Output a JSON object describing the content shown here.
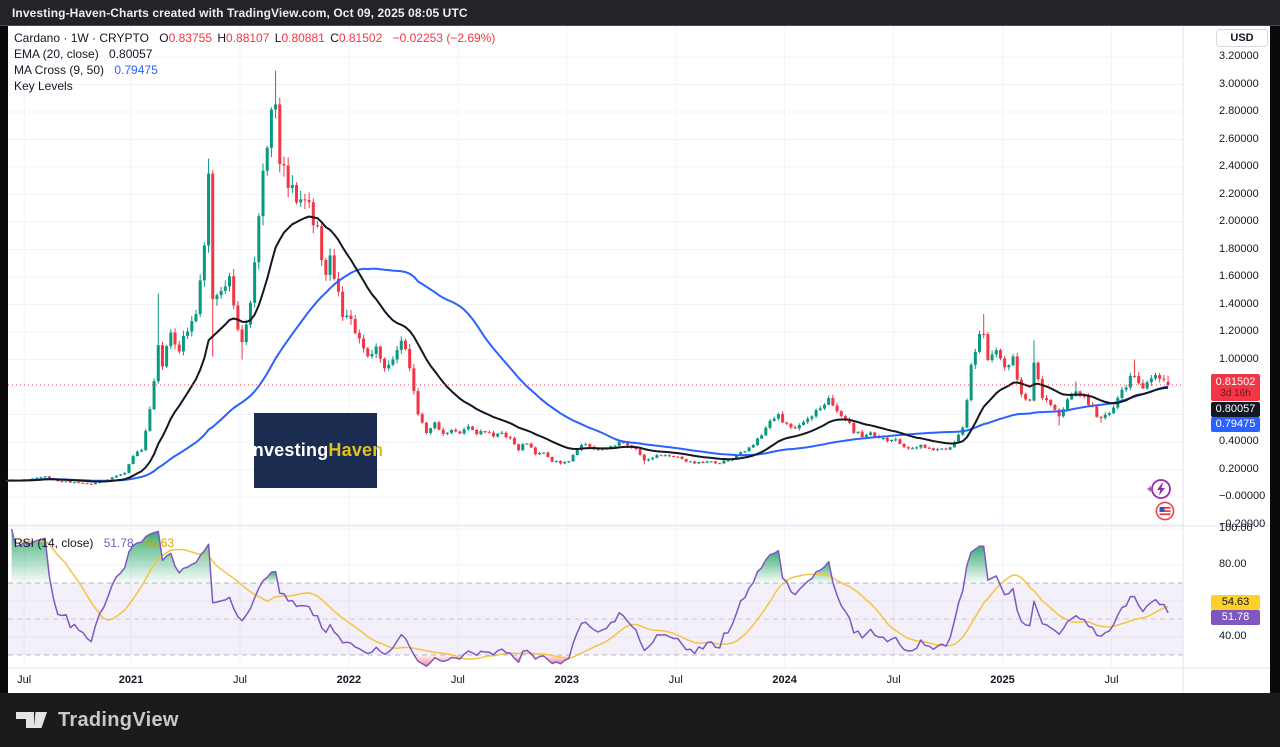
{
  "topbar": {
    "title": "Investing-Haven-Charts created with TradingView.com, Oct 09, 2025 08:05 UTC"
  },
  "legend": {
    "row1": {
      "title": "Cardano · 1W · CRYPTO",
      "o_label": "O",
      "o": "0.83755",
      "h_label": "H",
      "h": "0.88107",
      "l_label": "L",
      "l": "0.80881",
      "c_label": "C",
      "c": "0.81502",
      "change": "−0.02253 (−2.69%)"
    },
    "row2": {
      "label": "EMA (20, close)",
      "value": "0.80057"
    },
    "row3": {
      "label": "MA Cross (9, 50)",
      "value": "0.79475"
    },
    "row4": {
      "label": "Key Levels"
    }
  },
  "rsi_legend": {
    "label": "RSI (14, close)",
    "rsi_value": "51.78",
    "ma_value": "54.63"
  },
  "axis": {
    "currency": "USD",
    "price_ticks": [
      {
        "label": "3.20000",
        "value": 3.2
      },
      {
        "label": "3.00000",
        "value": 3.0
      },
      {
        "label": "2.80000",
        "value": 2.8
      },
      {
        "label": "2.60000",
        "value": 2.6
      },
      {
        "label": "2.40000",
        "value": 2.4
      },
      {
        "label": "2.20000",
        "value": 2.2
      },
      {
        "label": "2.00000",
        "value": 2.0
      },
      {
        "label": "1.80000",
        "value": 1.8
      },
      {
        "label": "1.60000",
        "value": 1.6
      },
      {
        "label": "1.40000",
        "value": 1.4
      },
      {
        "label": "1.20000",
        "value": 1.2
      },
      {
        "label": "1.00000",
        "value": 1.0
      },
      {
        "label": "0.40000",
        "value": 0.4
      },
      {
        "label": "0.20000",
        "value": 0.2
      },
      {
        "label": "−0.00000",
        "value": 0.0
      },
      {
        "label": "−0.20000",
        "value": -0.2
      }
    ],
    "rsi_ticks": [
      {
        "label": "100.00",
        "value": 100
      },
      {
        "label": "80.00",
        "value": 80
      },
      {
        "label": "40.00",
        "value": 40
      }
    ],
    "time_ticks": [
      {
        "label": "Jul",
        "week": 1,
        "bold": false
      },
      {
        "label": "2021",
        "week": 26.5,
        "bold": true
      },
      {
        "label": "Jul",
        "week": 52.5,
        "bold": false
      },
      {
        "label": "2022",
        "week": 78.5,
        "bold": true
      },
      {
        "label": "Jul",
        "week": 104.5,
        "bold": false
      },
      {
        "label": "2023",
        "week": 130.5,
        "bold": true
      },
      {
        "label": "Jul",
        "week": 156.5,
        "bold": false
      },
      {
        "label": "2024",
        "week": 182.5,
        "bold": true
      },
      {
        "label": "Jul",
        "week": 208.5,
        "bold": false
      },
      {
        "label": "2025",
        "week": 234.5,
        "bold": true
      },
      {
        "label": "Jul",
        "week": 260.5,
        "bold": false
      }
    ]
  },
  "price_labels": {
    "current": {
      "value": "0.81502",
      "countdown": "3d 16h",
      "color": "#f23645"
    },
    "ema": {
      "value": "0.80057",
      "color": "#131722"
    },
    "ma": {
      "value": "0.79475",
      "color": "#2962ff"
    }
  },
  "rsi_labels": {
    "ma": {
      "value": "54.63",
      "color": "#fdd02c"
    },
    "rsi": {
      "value": "51.78",
      "color": "#7e57c2"
    }
  },
  "watermark": {
    "part1": "Investing",
    "part2": "Haven"
  },
  "footer": {
    "brand": "TradingView"
  },
  "icons": {
    "lightning": "lightning-event-icon",
    "flag": "us-flag-event-icon"
  },
  "chart_data": {
    "type": "candlestick",
    "title": "Cardano 1W CRYPTO with EMA(20), MA Cross(9,50), Key Levels and RSI(14)",
    "timeframe": "1W",
    "x_range": [
      "Jul 2020",
      "Oct 2025"
    ],
    "price_axis": {
      "ticks_step": 0.2,
      "visible_range": [
        -0.29,
        3.42
      ],
      "grid": true
    },
    "rsi_axis": {
      "band": [
        30,
        70
      ],
      "mid": 50,
      "visible_range": [
        23,
        101
      ]
    },
    "current_bar": {
      "open": 0.83755,
      "high": 0.88107,
      "low": 0.80881,
      "close": 0.81502,
      "change": -0.02253,
      "change_pct": -2.69
    },
    "current_price_line": 0.81502,
    "indicators": [
      {
        "name": "EMA",
        "params": "20, close",
        "value": 0.80057,
        "color": "#131722"
      },
      {
        "name": "MA Cross",
        "params": "9, 50",
        "value": 0.79475,
        "color": "#2962ff"
      },
      {
        "name": "Key Levels"
      },
      {
        "name": "RSI",
        "params": "14, close",
        "value": 51.78,
        "ma_value": 54.63,
        "color": "#7e57c2",
        "ma_color": "#f5c342"
      }
    ],
    "weeks_total": 275,
    "price_path_weekly_anchors": [
      [
        -3,
        0.12
      ],
      [
        0,
        0.12
      ],
      [
        3,
        0.132
      ],
      [
        6,
        0.148
      ],
      [
        9,
        0.118
      ],
      [
        13,
        0.105
      ],
      [
        17,
        0.092
      ],
      [
        20,
        0.118
      ],
      [
        23,
        0.155
      ],
      [
        25,
        0.175
      ],
      [
        27,
        0.3
      ],
      [
        29,
        0.34
      ],
      [
        31,
        0.62
      ],
      [
        33,
        1.12
      ],
      [
        34,
        0.98
      ],
      [
        36,
        1.18
      ],
      [
        38,
        1.08
      ],
      [
        40,
        1.22
      ],
      [
        42,
        1.32
      ],
      [
        44,
        1.8
      ],
      [
        45,
        2.28
      ],
      [
        46,
        1.45
      ],
      [
        48,
        1.52
      ],
      [
        50,
        1.56
      ],
      [
        51,
        1.38
      ],
      [
        53,
        1.12
      ],
      [
        55,
        1.45
      ],
      [
        57,
        2.05
      ],
      [
        59,
        2.6
      ],
      [
        61,
        2.88
      ],
      [
        62,
        2.48
      ],
      [
        63,
        2.38
      ],
      [
        65,
        2.25
      ],
      [
        67,
        2.15
      ],
      [
        69,
        2.1
      ],
      [
        71,
        1.95
      ],
      [
        72,
        1.68
      ],
      [
        73,
        1.58
      ],
      [
        74,
        1.72
      ],
      [
        75,
        1.55
      ],
      [
        77,
        1.35
      ],
      [
        79,
        1.3
      ],
      [
        81,
        1.13
      ],
      [
        83,
        1.04
      ],
      [
        85,
        1.09
      ],
      [
        87,
        0.92
      ],
      [
        89,
        1.0
      ],
      [
        91,
        1.17
      ],
      [
        93,
        0.95
      ],
      [
        95,
        0.62
      ],
      [
        97,
        0.48
      ],
      [
        99,
        0.53
      ],
      [
        101,
        0.45
      ],
      [
        103,
        0.5
      ],
      [
        105,
        0.46
      ],
      [
        107,
        0.51
      ],
      [
        109,
        0.45
      ],
      [
        111,
        0.48
      ],
      [
        113,
        0.44
      ],
      [
        115,
        0.46
      ],
      [
        117,
        0.43
      ],
      [
        119,
        0.35
      ],
      [
        121,
        0.4
      ],
      [
        123,
        0.315
      ],
      [
        125,
        0.32
      ],
      [
        127,
        0.26
      ],
      [
        129,
        0.25
      ],
      [
        131,
        0.26
      ],
      [
        133,
        0.35
      ],
      [
        135,
        0.39
      ],
      [
        137,
        0.36
      ],
      [
        139,
        0.34
      ],
      [
        141,
        0.37
      ],
      [
        143,
        0.4
      ],
      [
        145,
        0.37
      ],
      [
        147,
        0.36
      ],
      [
        149,
        0.262
      ],
      [
        151,
        0.29
      ],
      [
        153,
        0.31
      ],
      [
        155,
        0.292
      ],
      [
        157,
        0.3
      ],
      [
        159,
        0.262
      ],
      [
        161,
        0.25
      ],
      [
        163,
        0.246
      ],
      [
        165,
        0.258
      ],
      [
        167,
        0.25
      ],
      [
        169,
        0.272
      ],
      [
        171,
        0.3
      ],
      [
        173,
        0.34
      ],
      [
        175,
        0.39
      ],
      [
        177,
        0.462
      ],
      [
        179,
        0.55
      ],
      [
        181,
        0.6
      ],
      [
        183,
        0.52
      ],
      [
        185,
        0.5
      ],
      [
        187,
        0.53
      ],
      [
        189,
        0.59
      ],
      [
        191,
        0.65
      ],
      [
        193,
        0.73
      ],
      [
        195,
        0.62
      ],
      [
        197,
        0.58
      ],
      [
        199,
        0.47
      ],
      [
        201,
        0.45
      ],
      [
        203,
        0.46
      ],
      [
        205,
        0.44
      ],
      [
        207,
        0.4
      ],
      [
        209,
        0.42
      ],
      [
        211,
        0.36
      ],
      [
        213,
        0.35
      ],
      [
        215,
        0.38
      ],
      [
        217,
        0.35
      ],
      [
        219,
        0.34
      ],
      [
        221,
        0.35
      ],
      [
        223,
        0.39
      ],
      [
        225,
        0.52
      ],
      [
        226,
        0.72
      ],
      [
        227,
        0.95
      ],
      [
        228,
        1.08
      ],
      [
        230,
        1.22
      ],
      [
        231,
        1.02
      ],
      [
        233,
        1.08
      ],
      [
        235,
        0.95
      ],
      [
        237,
        1.0
      ],
      [
        239,
        0.75
      ],
      [
        241,
        0.68
      ],
      [
        242,
        0.96
      ],
      [
        244,
        0.72
      ],
      [
        246,
        0.66
      ],
      [
        248,
        0.58
      ],
      [
        250,
        0.7
      ],
      [
        252,
        0.78
      ],
      [
        254,
        0.74
      ],
      [
        256,
        0.64
      ],
      [
        258,
        0.56
      ],
      [
        260,
        0.61
      ],
      [
        262,
        0.73
      ],
      [
        264,
        0.82
      ],
      [
        266,
        0.9
      ],
      [
        268,
        0.8
      ],
      [
        270,
        0.88
      ],
      [
        272,
        0.86
      ],
      [
        274,
        0.815
      ]
    ],
    "forced_highs": {
      "33": 1.48,
      "45": 2.46,
      "61": 3.1,
      "230": 1.33,
      "242": 1.14,
      "252": 0.84,
      "266": 1.0
    },
    "forced_lows": {
      "17": 0.088,
      "46": 1.02,
      "53": 1.0,
      "129": 0.235,
      "149": 0.238,
      "248": 0.52,
      "258": 0.54
    },
    "colors": {
      "up": "#089981",
      "down": "#f23645",
      "ema": "#131722",
      "ma": "#2962ff",
      "rsi": "#7e57c2",
      "rsi_ma": "#f5c342",
      "band_fill": "rgba(126,87,194,0.09)",
      "grid": "#f0f3fa",
      "separator": "#e0e3eb",
      "price_line": "#f23645",
      "overbought_fill": "#089950",
      "oversold_fill": "#f23645"
    }
  }
}
